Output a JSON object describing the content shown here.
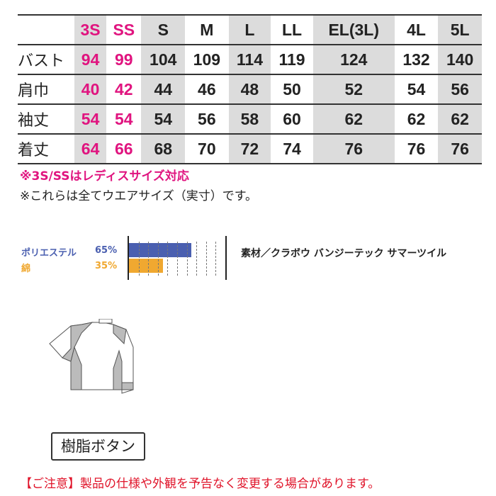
{
  "size_table": {
    "headers": [
      "",
      "3S",
      "SS",
      "S",
      "M",
      "L",
      "LL",
      "EL(3L)",
      "4L",
      "5L"
    ],
    "rows": [
      {
        "label": "バスト",
        "values": [
          "94",
          "99",
          "104",
          "109",
          "114",
          "119",
          "124",
          "132",
          "140"
        ]
      },
      {
        "label": "肩巾",
        "values": [
          "40",
          "42",
          "44",
          "46",
          "48",
          "50",
          "52",
          "54",
          "56"
        ]
      },
      {
        "label": "袖丈",
        "values": [
          "54",
          "54",
          "54",
          "56",
          "58",
          "60",
          "62",
          "62",
          "62"
        ]
      },
      {
        "label": "着丈",
        "values": [
          "64",
          "66",
          "68",
          "70",
          "72",
          "74",
          "76",
          "76",
          "76"
        ]
      }
    ]
  },
  "notes": {
    "ladies": "※3S/SSはレディスサイズ対応",
    "actual": "※これらは全てウエアサイズ（実寸）です。"
  },
  "composition": [
    {
      "name": "ポリエステル",
      "percent": "65%",
      "value": 65,
      "color": "#4a5fb0"
    },
    {
      "name": "綿",
      "percent": "35%",
      "value": 35,
      "color": "#f0a830"
    }
  ],
  "material": "素材／クラボウ バンジーテック サマーツイル",
  "button_label": "樹脂ボタン",
  "caution": "【ご注意】製品の仕様や外観を予告なく変更する場合があります。",
  "colors": {
    "accent_pink": "#e0147f",
    "caution_red": "#e0142a",
    "shade": "#dcdcdc"
  }
}
